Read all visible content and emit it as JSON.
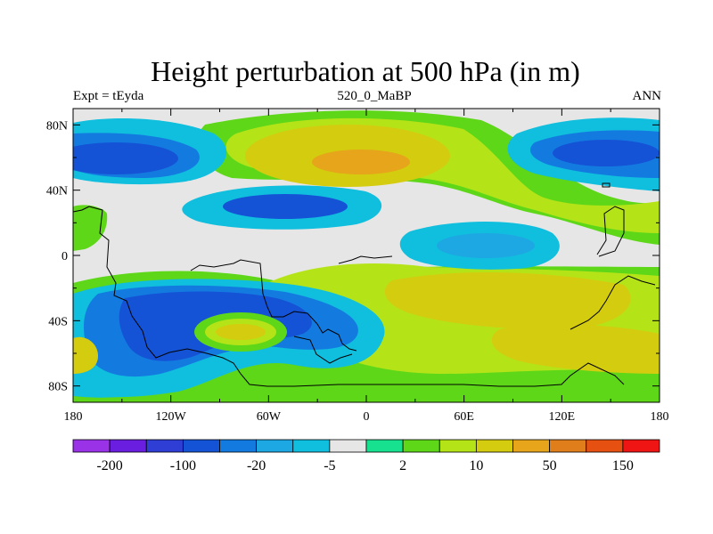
{
  "header": {
    "title": "Height perturbation at 500 hPa (in m)",
    "left_label": "Expt = tEyda",
    "center_label": "520_0_MaBP",
    "right_label": "ANN"
  },
  "chart_data": {
    "type": "filled-contour-map",
    "variable": "500 hPa geopotential height perturbation",
    "units": "m",
    "x_axis": {
      "range": [
        -180,
        180
      ],
      "ticks": [
        -180,
        -120,
        -60,
        0,
        60,
        120,
        180
      ],
      "tick_labels": [
        "180",
        "120W",
        "60W",
        "0",
        "60E",
        "120E",
        "180"
      ]
    },
    "y_axis": {
      "range": [
        -90,
        90
      ],
      "ticks": [
        80,
        40,
        0,
        -40,
        -80
      ],
      "tick_labels": [
        "80N",
        "40N",
        "0",
        "40S",
        "80S"
      ]
    },
    "colorbar": {
      "colors": [
        "#9a33e8",
        "#6a1fe0",
        "#2f3fd6",
        "#1553d6",
        "#137be0",
        "#1da8e3",
        "#10bede",
        "#e6e6e6",
        "#17e08e",
        "#5ed719",
        "#b4e418",
        "#d4cc0e",
        "#e6a51a",
        "#e07e1b",
        "#e65010",
        "#f01515"
      ],
      "labels": [
        "-200",
        "-100",
        "-20",
        "-5",
        "2",
        "10",
        "50",
        "150"
      ]
    }
  }
}
